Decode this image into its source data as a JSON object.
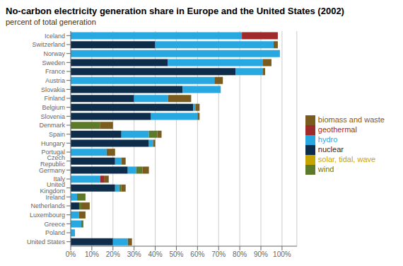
{
  "chart_data": {
    "type": "bar",
    "title": "No-carbon electricity generation share in Europe and the United States (2002)",
    "subtitle": "percent of total generation",
    "orientation": "horizontal",
    "stacked": true,
    "grid": true,
    "legend": "right",
    "categories": [
      "Iceland",
      "Switzerland",
      "Norway",
      "Sweden",
      "France",
      "Austria",
      "Slovakia",
      "Finland",
      "Belgium",
      "Slovenia",
      "Denmark",
      "Spain",
      "Hungary",
      "Portugal",
      "Czech Republic",
      "Germany",
      "Italy",
      "United Kingdom",
      "Ireland",
      "Netherlands",
      "Luxembourg",
      "Greece",
      "Poland",
      "United States"
    ],
    "series": [
      {
        "name": "nuclear",
        "color": "#0d2d4b",
        "values": [
          0,
          40,
          0,
          46,
          78,
          0,
          53,
          30,
          58,
          38,
          0,
          24,
          37,
          0,
          21,
          27,
          0,
          21,
          0,
          4,
          0,
          0,
          0,
          20
        ]
      },
      {
        "name": "hydro",
        "color": "#28a8e0",
        "values": [
          81,
          56,
          99,
          45,
          13,
          68,
          18,
          16,
          1,
          22,
          0,
          13,
          2,
          17,
          3,
          4,
          14,
          2,
          3,
          0,
          4,
          5,
          2,
          7
        ]
      },
      {
        "name": "geothermal",
        "color": "#9e2a2b",
        "values": [
          17,
          0,
          0,
          0,
          0,
          0,
          0,
          0,
          0,
          0,
          0,
          0,
          0,
          0,
          0,
          0,
          2,
          0,
          0,
          0,
          0,
          0,
          0,
          0
        ]
      },
      {
        "name": "solar, tidal, wave",
        "color": "#c8a400",
        "values": [
          0,
          0,
          0,
          0,
          0,
          0,
          0,
          0,
          0,
          0,
          0,
          0,
          0,
          0,
          0,
          0,
          0,
          0,
          0,
          0,
          0,
          0,
          0,
          0
        ]
      },
      {
        "name": "wind",
        "color": "#5c7a2a",
        "values": [
          0,
          0,
          0,
          0,
          0,
          0,
          0,
          0,
          0,
          0,
          14,
          4,
          0,
          0,
          0,
          3,
          0,
          1,
          4,
          1,
          0,
          1,
          0,
          0
        ]
      },
      {
        "name": "biomass and waste",
        "color": "#7a5c1e",
        "values": [
          0,
          2,
          0,
          4,
          1,
          4,
          0,
          11,
          2,
          1,
          6,
          2,
          1,
          4,
          2,
          3,
          2,
          2,
          0,
          4,
          3,
          0,
          0,
          2
        ]
      }
    ],
    "xlim": [
      0,
      107
    ],
    "xticks": [
      {
        "value": 0,
        "label": "0%"
      },
      {
        "value": 10,
        "label": "10%"
      },
      {
        "value": 20,
        "label": "20%"
      },
      {
        "value": 30,
        "label": "30%"
      },
      {
        "value": 40,
        "label": "40%"
      },
      {
        "value": 50,
        "label": "50%"
      },
      {
        "value": 60,
        "label": "60%"
      },
      {
        "value": 70,
        "label": "70%"
      },
      {
        "value": 80,
        "label": "80%"
      },
      {
        "value": 90,
        "label": "90%"
      },
      {
        "value": 100,
        "label": "100%"
      }
    ]
  }
}
